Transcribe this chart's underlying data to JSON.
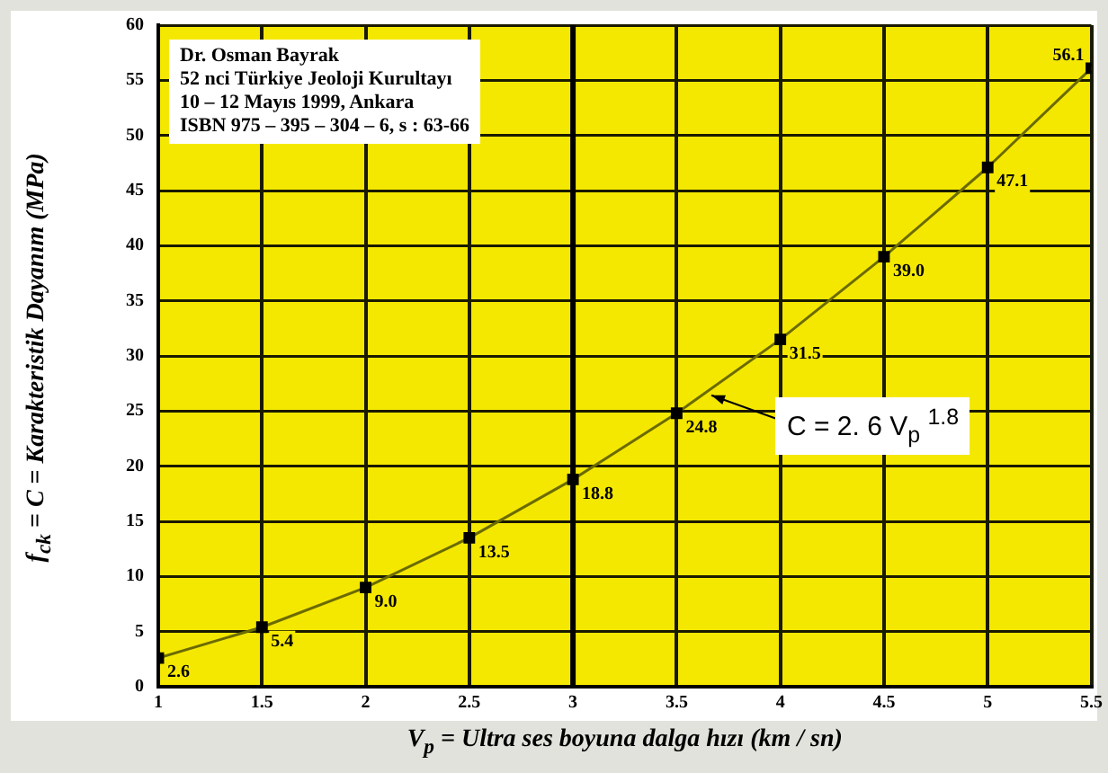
{
  "chart_data": {
    "type": "line",
    "xlabel": "V$_{p}$ = Ultra ses boyuna dalga hızı (km / sn)",
    "ylabel": "f$_{ck}$ = C = Karakteristik Dayanım (MPa)",
    "x": [
      1,
      1.5,
      2,
      2.5,
      3,
      3.5,
      4,
      4.5,
      5,
      5.5
    ],
    "series": [
      {
        "color": "#6b6b00",
        "values": [
          2.6,
          5.4,
          9.0,
          13.5,
          18.8,
          24.8,
          31.5,
          39.0,
          47.1,
          56.1
        ],
        "value_labels": [
          "2.6",
          "5.4",
          "9.0",
          "13.5",
          "18.8",
          "24.8",
          "31.5",
          "39.0",
          "47.1",
          "56.1"
        ]
      }
    ],
    "xlim": [
      1,
      5.5
    ],
    "xticks": [
      1,
      1.5,
      2,
      2.5,
      3,
      3.5,
      4,
      4.5,
      5,
      5.5
    ],
    "ylim": [
      0,
      60
    ],
    "yticks": [
      0,
      5,
      10,
      15,
      20,
      25,
      30,
      35,
      40,
      45,
      50,
      55,
      60
    ],
    "grid": true,
    "marker": "square",
    "line_style": "solid",
    "legend": false,
    "ref_lines": [
      {
        "axis": "x",
        "value": 3,
        "color": "#000000"
      }
    ],
    "annotations": [
      "Dr. Osman Bayrak\n52 nci Türkiye Jeoloji Kurultayı\n10 – 12 Mayıs 1999, Ankara\nISBN 975 – 395 – 304 – 6, s : 63-66",
      {
        "text": "C = 2. 6 V$_{p}$ $^{1.8}$",
        "x": 3.65,
        "y": 26.6
      }
    ]
  }
}
